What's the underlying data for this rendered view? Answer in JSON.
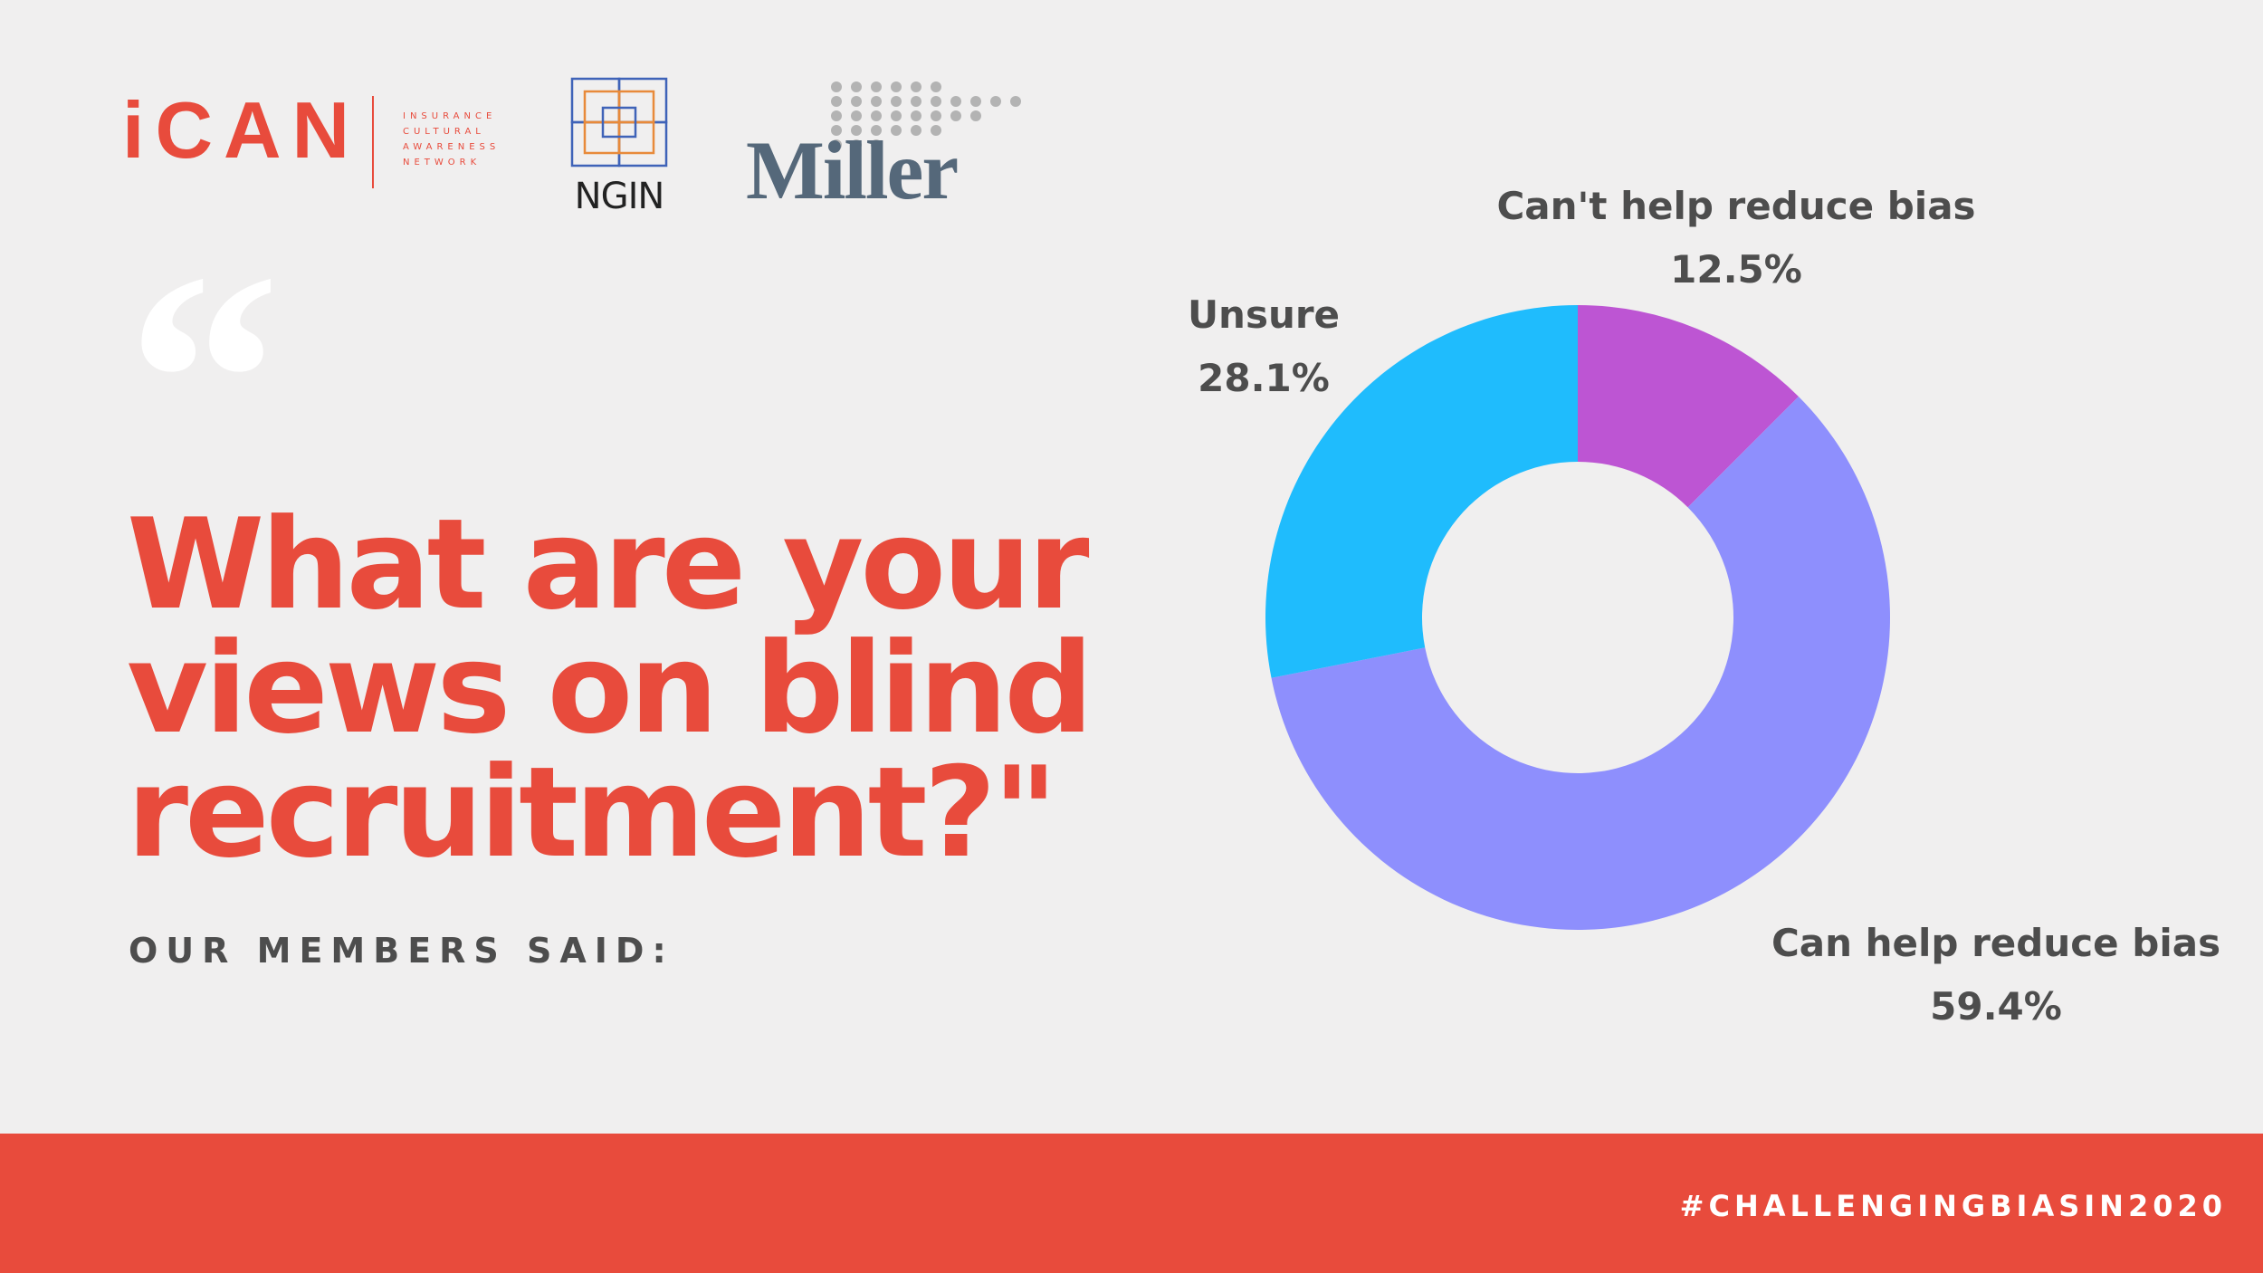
{
  "logos": {
    "ican": {
      "name": "iCAN",
      "subtitle_lines": [
        "INSURANCE",
        "CULTURAL",
        "AWARENESS",
        "NETWORK"
      ]
    },
    "ngin": {
      "name": "NGIN"
    },
    "miller": {
      "name": "Miller"
    }
  },
  "quote_mark": "“",
  "question": "What are your views on blind recruitment?\"",
  "subline": "OUR MEMBERS SAID:",
  "hashtag": "#CHALLENGINGBIASIN2020",
  "colors": {
    "background": "#f0efef",
    "accent": "#e84b3c",
    "slice_cant_help": "#bd55d3",
    "slice_can_help": "#8e8ffd",
    "slice_unsure": "#1fbcfd"
  },
  "chart_data": {
    "type": "pie",
    "donut": true,
    "slices": [
      {
        "label": "Can't help reduce bias",
        "value": 12.5,
        "value_label": "12.5%",
        "color": "#bd55d3"
      },
      {
        "label": "Can help reduce bias",
        "value": 59.4,
        "value_label": "59.4%",
        "color": "#8e8ffd"
      },
      {
        "label": "Unsure",
        "value": 28.1,
        "value_label": "28.1%",
        "color": "#1fbcfd"
      }
    ],
    "start": "12 o'clock",
    "direction": "clockwise"
  }
}
